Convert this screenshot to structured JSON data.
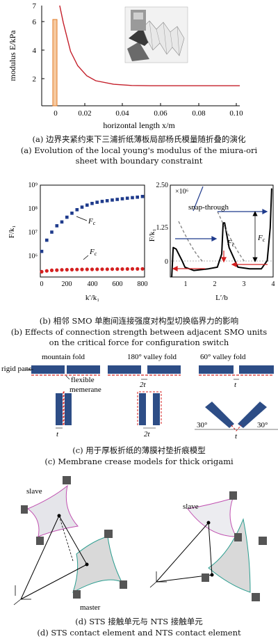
{
  "panel_a": {
    "ylabel": "modulus E/kPa",
    "xlabel": "horizontal length x/m",
    "yticks": [
      "2",
      "4",
      "6"
    ],
    "ytop": "7",
    "xticks": [
      "0",
      "0.02",
      "0.04",
      "0.06",
      "0.08",
      "0.10"
    ],
    "caption_cn": "(a) 边界夹紧约束下三浦折纸薄板局部杨氏模量随折叠的演化",
    "caption_en_1": "(a) Evolution of the local young's modulus of the miura-ori",
    "caption_en_2": "sheet with boundary constraint"
  },
  "panel_b": {
    "left_ylabel": "F/k₁",
    "left_xlabel": "k′/k₁",
    "left_yticks": [
      "10⁶",
      "10⁷",
      "10⁸",
      "10⁹"
    ],
    "left_xticks": [
      "0",
      "200",
      "400",
      "600",
      "800"
    ],
    "label_fc_upper": "F",
    "label_fc_lower": "F",
    "sub_c": "c",
    "right_ylabel": "F/k₁",
    "right_xlabel": "L′/b",
    "right_scale": "×10⁶",
    "right_yticks": [
      "2.50",
      "1.25",
      "0"
    ],
    "right_xticks": [
      "1",
      "2",
      "3",
      "4"
    ],
    "snap_label": "snap-through",
    "fc_label": "F",
    "caption_cn": "(b) 相邻 SMO 单胞间连接强度对构型切换临界力的影响",
    "caption_en_1": "(b) Effects of connection strength between adjacent SMO units",
    "caption_en_2": "on the critical force for configuration switch"
  },
  "panel_c": {
    "mountain_fold": "mountain fold",
    "valley_180": "180° valley fold",
    "valley_60": "60° valley fold",
    "rigid_panel": "rigid panel",
    "flexible_1": "flexible",
    "flexible_2": "memerane",
    "t1": "t",
    "two_t1": "2t",
    "t2": "t",
    "two_t2": "2t",
    "t3": "t",
    "angle_left": "30°",
    "angle_right": "30°",
    "caption_cn": "(c) 用于厚板折纸的薄膜衬垫折痕模型",
    "caption_en": "(c) Membrane crease models for thick origami"
  },
  "panel_d": {
    "slave_left": "slave",
    "slave_right": "slave",
    "master": "master",
    "caption_cn": "(d) STS 接触单元与 NTS 接触单元",
    "caption_en": "(d) STS contact element and NTS contact element"
  },
  "chart_data": [
    {
      "type": "line",
      "panel": "a",
      "xlabel": "horizontal length x/m",
      "ylabel": "modulus E/kPa",
      "xlim": [
        -0.01,
        0.1
      ],
      "ylim": [
        0,
        7
      ],
      "series": [
        {
          "x": [
            0.0,
            0.002,
            0.006,
            0.01,
            0.015,
            0.02,
            0.03,
            0.04,
            0.05,
            0.06,
            0.08,
            0.1
          ],
          "y": [
            7.0,
            5.8,
            3.8,
            2.8,
            2.1,
            1.75,
            1.5,
            1.42,
            1.4,
            1.4,
            1.4,
            1.4
          ]
        }
      ]
    },
    {
      "type": "scatter",
      "panel": "b-left",
      "xlabel": "k′/k₁",
      "ylabel": "F/k₁",
      "yscale": "log",
      "xlim": [
        0,
        800
      ],
      "ylim": [
        100000,
        1000000000
      ],
      "series": [
        {
          "marker": "square",
          "color": "#1f3b8c",
          "x": [
            0,
            40,
            80,
            120,
            160,
            200,
            240,
            280,
            320,
            360,
            400,
            440,
            480,
            520,
            560,
            600,
            640,
            680,
            720,
            760,
            800
          ],
          "y": [
            1300000,
            4000000,
            9000000,
            17000000,
            25000000,
            40000000,
            60000000,
            85000000,
            110000000,
            135000000,
            160000000,
            180000000,
            195000000,
            210000000,
            225000000,
            240000000,
            255000000,
            270000000,
            285000000,
            300000000,
            320000000
          ]
        },
        {
          "marker": "circle",
          "color": "#d42020",
          "x": [
            0,
            40,
            80,
            120,
            160,
            200,
            240,
            280,
            320,
            360,
            400,
            440,
            480,
            520,
            560,
            600,
            640,
            680,
            720,
            760,
            800
          ],
          "y": [
            170000,
            185000,
            195000,
            200000,
            205000,
            208000,
            210000,
            212000,
            214000,
            215000,
            216000,
            217000,
            218000,
            219000,
            220000,
            221000,
            222000,
            223000,
            224000,
            225000,
            226000
          ]
        }
      ]
    },
    {
      "type": "line",
      "panel": "b-right",
      "xlabel": "L′/b",
      "ylabel": "F/k₁",
      "xlim": [
        0.5,
        4
      ],
      "ylim": [
        -0.3,
        2.5
      ],
      "series": [
        {
          "x": [
            0.55,
            0.6,
            0.7,
            0.9,
            1.0,
            1.3,
            1.8,
            2.1,
            2.25,
            2.3,
            2.35,
            2.5,
            2.8,
            3.2,
            3.6,
            3.8,
            3.9,
            3.95
          ],
          "y": [
            -0.3,
            0.6,
            0.55,
            0.2,
            0.0,
            -0.1,
            -0.05,
            0.0,
            0.4,
            1.35,
            1.35,
            0.6,
            0.0,
            -0.05,
            -0.05,
            0.2,
            1.2,
            2.4
          ]
        }
      ]
    }
  ]
}
